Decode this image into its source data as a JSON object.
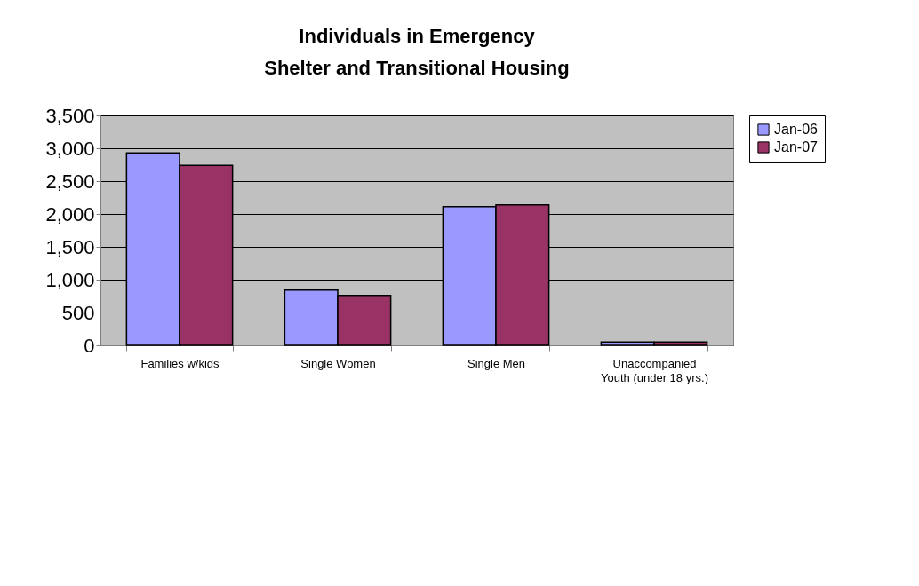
{
  "chart_data": {
    "type": "bar",
    "title": "Individuals in Emergency Shelter and Transitional Housing",
    "categories": [
      "Families w/kids",
      "Single Women",
      "Single Men",
      "Unaccompanied Youth (under 18 yrs.)"
    ],
    "series": [
      {
        "name": "Jan-06",
        "color": "#9999ff",
        "values": [
          2930,
          840,
          2110,
          50
        ]
      },
      {
        "name": "Jan-07",
        "color": "#993366",
        "values": [
          2740,
          760,
          2140,
          50
        ]
      }
    ],
    "ylim": [
      0,
      3500
    ],
    "yticks": [
      0,
      500,
      {
        "value": 1000,
        "label": "1,000"
      },
      {
        "value": 1500,
        "label": "1,500"
      },
      {
        "value": 2000,
        "label": "2,000"
      },
      {
        "value": 2500,
        "label": "2,500"
      },
      {
        "value": 3000,
        "label": "3,000"
      },
      {
        "value": 3500,
        "label": "3,500"
      }
    ],
    "grid": "y",
    "legend": "right"
  }
}
